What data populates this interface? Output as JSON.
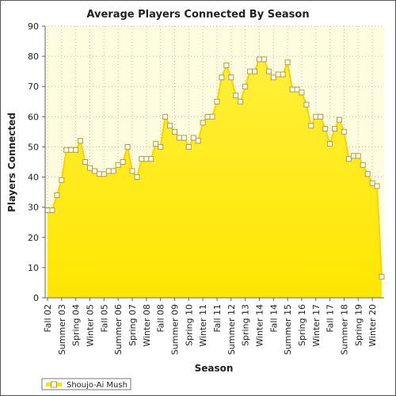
{
  "colors": {
    "fill": "#ffe600",
    "line": "#ffd000",
    "marker_fill": "#ffffff",
    "marker_stroke": "#b89a30",
    "plot_bg": "#fffde0",
    "grid": "#c8c8a0"
  },
  "chart_data": {
    "type": "area",
    "title": "Average Players Connected By Season",
    "xlabel": "Season",
    "ylabel": "Players Connected",
    "ylim": [
      0,
      90
    ],
    "yticks": [
      0,
      10,
      20,
      30,
      40,
      50,
      60,
      70,
      80,
      90
    ],
    "grid": true,
    "legend_position": "bottom-left",
    "x_tick_labels": [
      "Fall 02",
      "Summer 03",
      "Spring 04",
      "Winter 05",
      "Fall 05",
      "Summer 06",
      "Spring 07",
      "Winter 08",
      "Fall 08",
      "Summer 09",
      "Spring 10",
      "Winter 11",
      "Fall 11",
      "Summer 12",
      "Spring 13",
      "Winter 14",
      "Fall 14",
      "Summer 15",
      "Spring 16",
      "Winter 17",
      "Fall 17",
      "Summer 18",
      "Spring 19",
      "Winter 20"
    ],
    "x_tick_index": [
      0,
      3,
      6,
      9,
      12,
      15,
      18,
      21,
      24,
      27,
      30,
      33,
      36,
      39,
      42,
      45,
      48,
      51,
      54,
      57,
      60,
      63,
      66,
      69
    ],
    "series": [
      {
        "name": "Shoujo-Ai Mush",
        "values": [
          29,
          29,
          34,
          39,
          49,
          49,
          49,
          52,
          45,
          43,
          42,
          41,
          41,
          42,
          42,
          44,
          45,
          50,
          42,
          40,
          46,
          46,
          46,
          51,
          50,
          60,
          57,
          55,
          53,
          53,
          50,
          53,
          52,
          58,
          60,
          60,
          65,
          73,
          77,
          73,
          67,
          65,
          70,
          75,
          75,
          79,
          79,
          75,
          73,
          74,
          74,
          78,
          69,
          69,
          68,
          64,
          57,
          60,
          60,
          56,
          51,
          56,
          59,
          55,
          46,
          47,
          47,
          44,
          41,
          38,
          37,
          7
        ]
      }
    ]
  }
}
